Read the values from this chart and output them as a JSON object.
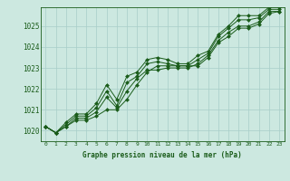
{
  "title": "Graphe pression niveau de la mer (hPa)",
  "background_color": "#cce8e0",
  "grid_color": "#a8cec8",
  "line_color": "#1a5c1a",
  "marker_color": "#1a5c1a",
  "xlim": [
    -0.5,
    23.5
  ],
  "ylim": [
    1019.5,
    1025.9
  ],
  "yticks": [
    1020,
    1021,
    1022,
    1023,
    1024,
    1025
  ],
  "xticks": [
    0,
    1,
    2,
    3,
    4,
    5,
    6,
    7,
    8,
    9,
    10,
    11,
    12,
    13,
    14,
    15,
    16,
    17,
    18,
    19,
    20,
    21,
    22,
    23
  ],
  "series": [
    [
      1020.2,
      1019.9,
      1020.2,
      1020.5,
      1020.5,
      1020.7,
      1021.0,
      1021.0,
      1021.5,
      1022.2,
      1022.8,
      1023.1,
      1023.1,
      1023.1,
      1023.1,
      1023.1,
      1023.5,
      1024.2,
      1024.5,
      1024.9,
      1024.9,
      1025.1,
      1025.6,
      1025.7
    ],
    [
      1020.2,
      1019.9,
      1020.2,
      1020.6,
      1020.6,
      1020.9,
      1021.6,
      1021.1,
      1021.9,
      1022.5,
      1022.9,
      1022.9,
      1023.0,
      1023.0,
      1023.0,
      1023.2,
      1023.6,
      1024.3,
      1024.7,
      1025.0,
      1025.0,
      1025.2,
      1025.7,
      1025.7
    ],
    [
      1020.2,
      1019.9,
      1020.3,
      1020.7,
      1020.7,
      1021.1,
      1021.9,
      1021.2,
      1022.3,
      1022.6,
      1023.2,
      1023.3,
      1023.2,
      1023.1,
      1023.1,
      1023.4,
      1023.7,
      1024.5,
      1024.9,
      1025.3,
      1025.3,
      1025.4,
      1025.8,
      1025.8
    ],
    [
      1020.2,
      1019.9,
      1020.4,
      1020.8,
      1020.8,
      1021.3,
      1022.2,
      1021.5,
      1022.6,
      1022.8,
      1023.4,
      1023.5,
      1023.4,
      1023.2,
      1023.2,
      1023.6,
      1023.8,
      1024.6,
      1025.0,
      1025.5,
      1025.5,
      1025.5,
      1025.9,
      1025.9
    ]
  ]
}
